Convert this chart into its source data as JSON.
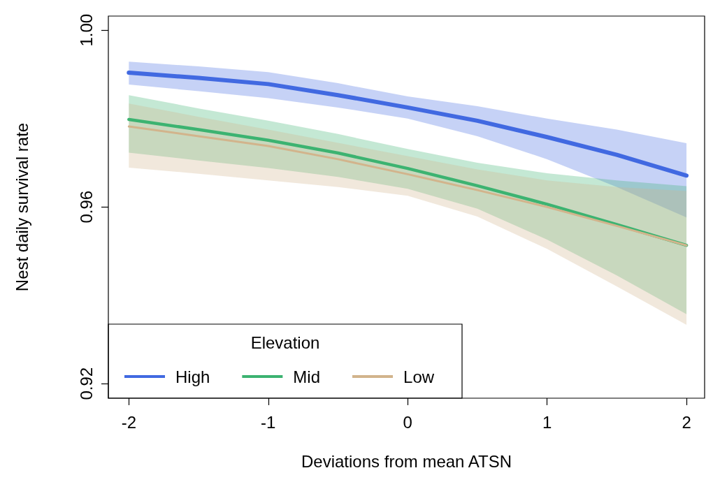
{
  "chart_data": {
    "type": "line",
    "xlabel": "Deviations from mean ATSN",
    "ylabel": "Nest daily survival rate",
    "legend_title": "Elevation",
    "x": [
      -2,
      -1.5,
      -1,
      -0.5,
      0,
      0.5,
      1,
      1.5,
      2
    ],
    "series": [
      {
        "name": "High",
        "color": "#4169e1",
        "values": [
          0.9904,
          0.9892,
          0.9878,
          0.9853,
          0.9825,
          0.9795,
          0.9758,
          0.9718,
          0.9671
        ],
        "lower": [
          0.9877,
          0.9862,
          0.9846,
          0.9825,
          0.98,
          0.976,
          0.9708,
          0.9645,
          0.9576
        ],
        "upper": [
          0.9929,
          0.9918,
          0.9905,
          0.988,
          0.985,
          0.9828,
          0.98,
          0.9775,
          0.9744
        ]
      },
      {
        "name": "Mid",
        "color": "#3cb371",
        "values": [
          0.9798,
          0.9775,
          0.9751,
          0.9722,
          0.9687,
          0.9648,
          0.9606,
          0.956,
          0.9513
        ],
        "lower": [
          0.9723,
          0.9705,
          0.9688,
          0.9668,
          0.9641,
          0.9596,
          0.9526,
          0.9445,
          0.9357
        ],
        "upper": [
          0.9853,
          0.9823,
          0.9795,
          0.9765,
          0.9731,
          0.97,
          0.9676,
          0.966,
          0.9647
        ]
      },
      {
        "name": "Low",
        "color": "#d2b48c",
        "values": [
          0.9782,
          0.976,
          0.9738,
          0.9708,
          0.9674,
          0.9638,
          0.96,
          0.9557,
          0.9513
        ],
        "lower": [
          0.9689,
          0.9675,
          0.966,
          0.9645,
          0.9625,
          0.9578,
          0.9505,
          0.942,
          0.9333
        ],
        "upper": [
          0.9834,
          0.9804,
          0.9775,
          0.9745,
          0.9715,
          0.9685,
          0.966,
          0.9645,
          0.9636
        ]
      }
    ],
    "xlim": [
      -2.147,
      2.13
    ],
    "xticks": [
      -2,
      -1,
      0,
      1,
      2
    ],
    "ylim": [
      0.9167,
      1.0032
    ],
    "yticks": [
      {
        "value": 0.92,
        "label": "0.92"
      },
      0.96,
      {
        "value": 1,
        "label": "1.00"
      }
    ],
    "grid": false,
    "legend": "bottom left",
    "marker": "none",
    "line_style": "solid"
  }
}
